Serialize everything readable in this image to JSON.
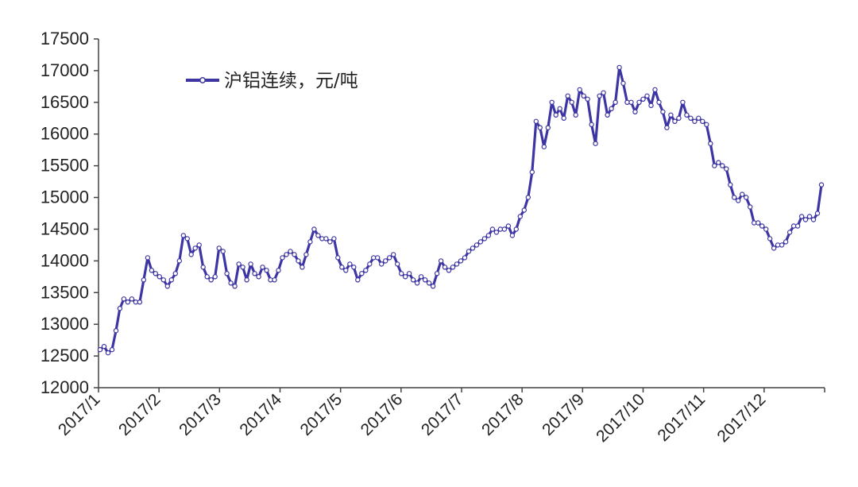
{
  "chart_data": {
    "type": "line",
    "title": "",
    "xlabel": "",
    "ylabel": "",
    "ylim": [
      12000,
      17500
    ],
    "y_ticks": [
      "12000",
      "12500",
      "13000",
      "13500",
      "14000",
      "14500",
      "15000",
      "15500",
      "16000",
      "16500",
      "17000",
      "17500"
    ],
    "x_tick_labels": [
      "2017/1",
      "2017/2",
      "2017/3",
      "2017/4",
      "2017/5",
      "2017/6",
      "2017/7",
      "2017/8",
      "2017/9",
      "2017/10",
      "2017/11",
      "2017/12"
    ],
    "grid": false,
    "legend_position": "top-left",
    "colors": {
      "series": "#3d35a3",
      "marker_fill": "#ffffff",
      "axis": "#444444"
    },
    "series": [
      {
        "name": "沪铝连续，元/吨",
        "values": [
          12600,
          12650,
          12550,
          12600,
          12900,
          13250,
          13400,
          13350,
          13400,
          13350,
          13350,
          13700,
          14050,
          13850,
          13800,
          13750,
          13700,
          13600,
          13700,
          13800,
          14000,
          14400,
          14350,
          14100,
          14200,
          14250,
          13900,
          13750,
          13700,
          13750,
          14200,
          14150,
          13800,
          13650,
          13600,
          13950,
          13900,
          13700,
          13950,
          13800,
          13750,
          13900,
          13850,
          13700,
          13700,
          13850,
          14050,
          14100,
          14150,
          14100,
          14000,
          13900,
          14100,
          14300,
          14500,
          14400,
          14350,
          14350,
          14300,
          14350,
          14050,
          13900,
          13850,
          13950,
          13900,
          13700,
          13800,
          13850,
          13950,
          14050,
          14050,
          13950,
          14000,
          14050,
          14100,
          13950,
          13800,
          13750,
          13800,
          13700,
          13650,
          13750,
          13700,
          13650,
          13600,
          13800,
          14000,
          13900,
          13850,
          13900,
          13950,
          14000,
          14050,
          14150,
          14200,
          14250,
          14300,
          14350,
          14400,
          14500,
          14450,
          14500,
          14500,
          14550,
          14400,
          14500,
          14700,
          14800,
          15000,
          15400,
          16200,
          16100,
          15800,
          16100,
          16500,
          16300,
          16400,
          16250,
          16600,
          16500,
          16300,
          16700,
          16600,
          16550,
          16150,
          15850,
          16600,
          16650,
          16300,
          16400,
          16500,
          17050,
          16800,
          16500,
          16500,
          16350,
          16500,
          16550,
          16600,
          16450,
          16700,
          16500,
          16350,
          16100,
          16300,
          16200,
          16250,
          16500,
          16300,
          16250,
          16200,
          16250,
          16200,
          16150,
          15850,
          15500,
          15550,
          15500,
          15450,
          15200,
          15000,
          14950,
          15050,
          15000,
          14850,
          14600,
          14600,
          14550,
          14500,
          14350,
          14200,
          14250,
          14250,
          14300,
          14450,
          14550,
          14550,
          14700,
          14650,
          14700,
          14650,
          14750,
          15200
        ]
      }
    ]
  }
}
